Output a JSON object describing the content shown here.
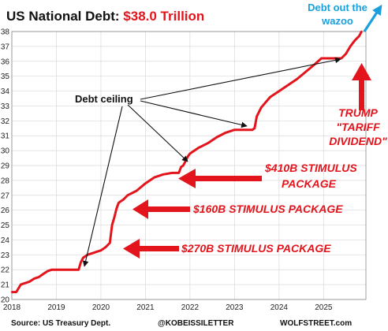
{
  "title": {
    "prefix": "US National Debt: ",
    "highlight": "$38.0 Trillion"
  },
  "colors": {
    "series": "#e3141c",
    "grid": "#d9d9d9",
    "text": "#111111",
    "accent_blue": "#1aa0dc",
    "title_red": "#e3141c"
  },
  "annotations": {
    "debt_ceiling": "Debt ceiling",
    "stimulus_410_line1": "$410B STIMULUS",
    "stimulus_410_line2": "PACKAGE",
    "stimulus_160": "$160B STIMULUS PACKAGE",
    "stimulus_270": "$270B STIMULUS PACKAGE",
    "trump_line1": "TRUMP",
    "trump_line2": "\"TARIFF",
    "trump_line3": "DIVIDEND\"",
    "wazoo_line1": "Debt out the",
    "wazoo_line2": "wazoo"
  },
  "footer": {
    "source": "Source: US Treasury Dept.",
    "handle": "@KOBEISSILETTER",
    "site": "WOLFSTREET.com"
  },
  "chart_data": {
    "type": "line",
    "title": "US National Debt: $38.0 Trillion",
    "xlabel": "",
    "ylabel": "",
    "xlim": [
      2018.0,
      2025.95
    ],
    "ylim": [
      20,
      38
    ],
    "x_ticks": [
      2018,
      2019,
      2020,
      2021,
      2022,
      2023,
      2024,
      2025
    ],
    "y_ticks": [
      20,
      21,
      22,
      23,
      24,
      25,
      26,
      27,
      28,
      29,
      30,
      31,
      32,
      33,
      34,
      35,
      36,
      37,
      38
    ],
    "grid": true,
    "series": [
      {
        "x": [
          2018.0,
          2018.1,
          2018.2,
          2018.3,
          2018.4,
          2018.5,
          2018.6,
          2018.7,
          2018.8,
          2018.9,
          2019.0,
          2019.1,
          2019.2,
          2019.3,
          2019.4,
          2019.5,
          2019.55,
          2019.6,
          2019.7,
          2019.8,
          2019.9,
          2020.0,
          2020.1,
          2020.2,
          2020.25,
          2020.3,
          2020.35,
          2020.4,
          2020.45,
          2020.5,
          2020.6,
          2020.8,
          2021.0,
          2021.2,
          2021.4,
          2021.6,
          2021.75,
          2021.8,
          2021.85,
          2021.9,
          2021.95,
          2022.0,
          2022.2,
          2022.4,
          2022.6,
          2022.8,
          2023.0,
          2023.2,
          2023.4,
          2023.45,
          2023.5,
          2023.6,
          2023.8,
          2024.0,
          2024.2,
          2024.4,
          2024.6,
          2024.8,
          2024.95,
          2025.05,
          2025.2,
          2025.4,
          2025.5,
          2025.6,
          2025.7,
          2025.8,
          2025.85
        ],
        "values": [
          20.5,
          20.5,
          21.0,
          21.1,
          21.2,
          21.4,
          21.5,
          21.7,
          21.9,
          22.0,
          22.0,
          22.0,
          22.0,
          22.0,
          22.0,
          22.0,
          22.5,
          22.8,
          23.0,
          23.1,
          23.2,
          23.3,
          23.5,
          23.8,
          25.0,
          25.5,
          26.1,
          26.5,
          26.6,
          26.7,
          27.0,
          27.3,
          27.8,
          28.2,
          28.4,
          28.5,
          28.5,
          28.9,
          29.0,
          29.3,
          29.6,
          29.8,
          30.2,
          30.5,
          30.9,
          31.2,
          31.4,
          31.4,
          31.4,
          31.5,
          32.3,
          32.9,
          33.6,
          34.0,
          34.4,
          34.8,
          35.3,
          35.8,
          36.2,
          36.2,
          36.2,
          36.2,
          36.5,
          37.0,
          37.4,
          37.7,
          38.0
        ]
      }
    ]
  }
}
